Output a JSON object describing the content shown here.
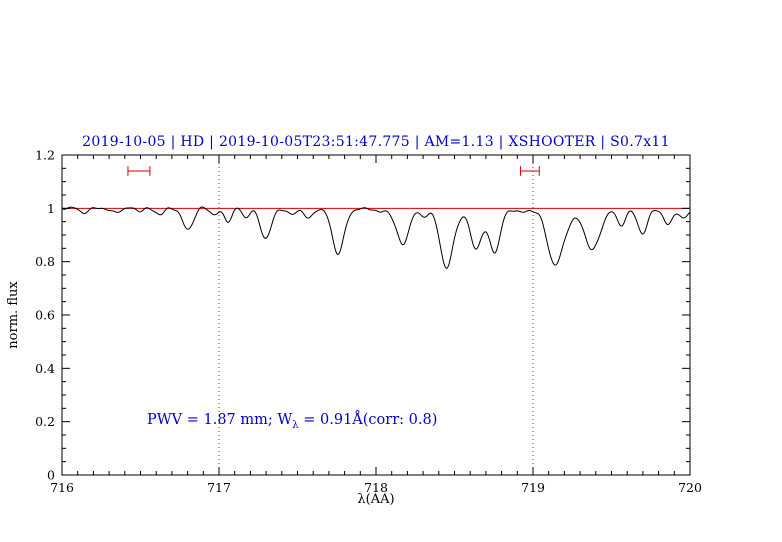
{
  "chart_data": {
    "type": "line",
    "title": "2019-10-05 | HD | 2019-10-05T23:51:47.775 | AM=1.13 | XSHOOTER | S0.7x11",
    "xlabel": "λ(AA)",
    "ylabel": "norm. flux",
    "xlim": [
      716,
      720
    ],
    "ylim": [
      0,
      1.2
    ],
    "xticks": [
      {
        "value": 716,
        "label": "716"
      },
      {
        "value": 717,
        "label": "717"
      },
      {
        "value": 718,
        "label": "718"
      },
      {
        "value": 719,
        "label": "719"
      },
      {
        "value": 720,
        "label": "720"
      }
    ],
    "yticks": [
      {
        "value": 0,
        "label": "0"
      },
      {
        "value": 0.2,
        "label": "0.2"
      },
      {
        "value": 0.4,
        "label": "0.4"
      },
      {
        "value": 0.6,
        "label": "0.6"
      },
      {
        "value": 0.8,
        "label": "0.8"
      },
      {
        "value": 1,
        "label": "1"
      },
      {
        "value": 1.2,
        "label": "1.2"
      }
    ],
    "x_minor_step": 0.1,
    "y_minor_step": 0.05,
    "guide_lines_x": [
      717,
      719
    ],
    "continuum": 1.0,
    "continuum_line": {
      "y": 1.0
    },
    "markers": [
      {
        "x1": 716.42,
        "x2": 716.56,
        "y": 1.14
      },
      {
        "x1": 718.92,
        "x2": 719.04,
        "y": 1.14
      }
    ],
    "marker_cap_half": 0.018,
    "wiggles": [
      {
        "amp": 0.004,
        "freq": 55,
        "phase": 0
      },
      {
        "amp": 0.0035,
        "freq": 29,
        "phase": 2
      },
      {
        "amp": 0.002,
        "freq": 90,
        "phase": 4
      }
    ],
    "absorption_lines": [
      {
        "center": 716.13,
        "depth": 0.012,
        "sigma": 0.03
      },
      {
        "center": 716.32,
        "depth": 0.015,
        "sigma": 0.03
      },
      {
        "center": 716.5,
        "depth": 0.012,
        "sigma": 0.025
      },
      {
        "center": 716.63,
        "depth": 0.022,
        "sigma": 0.025
      },
      {
        "center": 716.8,
        "depth": 0.075,
        "sigma": 0.035
      },
      {
        "center": 716.97,
        "depth": 0.025,
        "sigma": 0.025
      },
      {
        "center": 717.06,
        "depth": 0.045,
        "sigma": 0.025
      },
      {
        "center": 717.17,
        "depth": 0.035,
        "sigma": 0.022
      },
      {
        "center": 717.3,
        "depth": 0.112,
        "sigma": 0.035
      },
      {
        "center": 717.46,
        "depth": 0.022,
        "sigma": 0.025
      },
      {
        "center": 717.57,
        "depth": 0.045,
        "sigma": 0.025
      },
      {
        "center": 717.76,
        "depth": 0.172,
        "sigma": 0.038
      },
      {
        "center": 718.02,
        "depth": 0.02,
        "sigma": 0.025
      },
      {
        "center": 718.17,
        "depth": 0.135,
        "sigma": 0.04
      },
      {
        "center": 718.3,
        "depth": 0.025,
        "sigma": 0.03
      },
      {
        "center": 718.45,
        "depth": 0.225,
        "sigma": 0.042
      },
      {
        "center": 718.63,
        "depth": 0.1,
        "sigma": 0.028
      },
      {
        "center": 718.7,
        "depth": 0.08,
        "sigma": 0.08
      },
      {
        "center": 718.76,
        "depth": 0.1,
        "sigma": 0.028
      },
      {
        "center": 718.93,
        "depth": 0.015,
        "sigma": 0.025
      },
      {
        "center": 719.14,
        "depth": 0.2,
        "sigma": 0.05
      },
      {
        "center": 719.3,
        "depth": 0.03,
        "sigma": 0.12
      },
      {
        "center": 719.38,
        "depth": 0.13,
        "sigma": 0.045
      },
      {
        "center": 719.56,
        "depth": 0.06,
        "sigma": 0.028
      },
      {
        "center": 719.7,
        "depth": 0.095,
        "sigma": 0.032
      },
      {
        "center": 719.86,
        "depth": 0.06,
        "sigma": 0.028
      },
      {
        "center": 719.96,
        "depth": 0.045,
        "sigma": 0.025
      }
    ],
    "key_minima": [
      {
        "x": 716.8,
        "flux": 0.93
      },
      {
        "x": 717.06,
        "flux": 0.95
      },
      {
        "x": 717.3,
        "flux": 0.89
      },
      {
        "x": 717.76,
        "flux": 0.83
      },
      {
        "x": 718.17,
        "flux": 0.86
      },
      {
        "x": 718.45,
        "flux": 0.77
      },
      {
        "x": 718.63,
        "flux": 0.84
      },
      {
        "x": 718.76,
        "flux": 0.83
      },
      {
        "x": 719.14,
        "flux": 0.79
      },
      {
        "x": 719.38,
        "flux": 0.85
      },
      {
        "x": 719.7,
        "flux": 0.9
      }
    ],
    "annotation": {
      "prefix": "PWV = 1.87 mm; W",
      "sub": "λ",
      "suffix": " = 0.91Å(corr: 0.8)",
      "pwv_mm": 1.87,
      "w_lambda_A": 0.91,
      "corr": 0.8
    },
    "colors": {
      "title": "#0000cd",
      "annotation": "#0000cd",
      "spectrum": "#000000",
      "continuum": "#d40000",
      "marker": "#d40000",
      "guide": "#444444",
      "frame": "#000000"
    },
    "legend": "none",
    "grid": "off"
  }
}
